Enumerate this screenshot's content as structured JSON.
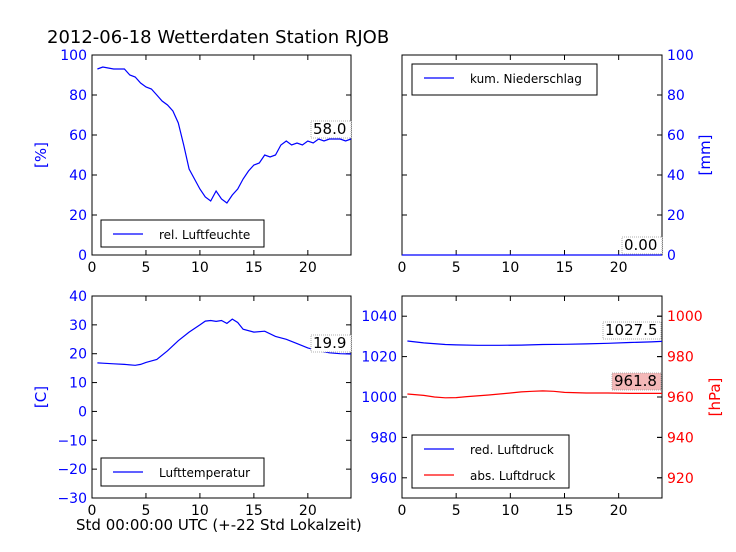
{
  "page": {
    "title": "2012-06-18 Wetterdaten Station RJOB",
    "xlabel": "Std 00:00:00 UTC (+-22 Std Lokalzeit)"
  },
  "chart_data": [
    {
      "type": "line",
      "id": "humidity",
      "ylabel": "[%]",
      "xlim": [
        0,
        24
      ],
      "ylim": [
        0,
        100
      ],
      "xticks": [
        0,
        5,
        10,
        15,
        20
      ],
      "yticks": [
        0,
        20,
        40,
        60,
        80,
        100
      ],
      "tick_color": "#0000ff",
      "legend": "lower left",
      "series": [
        {
          "name": "rel. Luftfeuchte",
          "color": "#0000ff",
          "x": [
            0.5,
            1,
            2,
            3,
            3.5,
            4,
            4.5,
            5,
            5.5,
            6,
            6.5,
            7,
            7.5,
            8,
            8.5,
            9,
            9.5,
            10,
            10.5,
            11,
            11.5,
            12,
            12.5,
            13,
            13.5,
            14,
            14.5,
            15,
            15.5,
            16,
            16.5,
            17,
            17.5,
            18,
            18.5,
            19,
            19.5,
            20,
            20.5,
            21,
            21.5,
            22,
            22.5,
            23,
            23.5,
            24
          ],
          "y": [
            93,
            94,
            93,
            93,
            90,
            89,
            86,
            84,
            83,
            80,
            77,
            75,
            72,
            66,
            55,
            43,
            38,
            33,
            29,
            27,
            32,
            28,
            26,
            30,
            33,
            38,
            42,
            45,
            46,
            50,
            49,
            50,
            55,
            57,
            55,
            56,
            55,
            57,
            56,
            58,
            57,
            58,
            58,
            58,
            57,
            58
          ]
        }
      ],
      "annotation": "58.0"
    },
    {
      "type": "line",
      "id": "precip",
      "ylabel": "[mm]",
      "xlim": [
        0,
        24
      ],
      "ylim": [
        0,
        100
      ],
      "xticks": [
        0,
        5,
        10,
        15,
        20
      ],
      "yticks": [
        0,
        20,
        40,
        60,
        80,
        100
      ],
      "tick_color": "#0000ff",
      "legend": "upper left",
      "series": [
        {
          "name": "kum. Niederschlag",
          "color": "#0000ff",
          "x": [
            0,
            24
          ],
          "y": [
            0,
            0
          ]
        }
      ],
      "annotation": "0.00"
    },
    {
      "type": "line",
      "id": "temperature",
      "ylabel": "[C]",
      "xlim": [
        0,
        24
      ],
      "ylim": [
        -30,
        40
      ],
      "xticks": [
        0,
        5,
        10,
        15,
        20
      ],
      "yticks": [
        -30,
        -20,
        -10,
        0,
        10,
        20,
        30,
        40
      ],
      "tick_color": "#0000ff",
      "legend": "lower left",
      "series": [
        {
          "name": "Lufttemperatur",
          "color": "#0000ff",
          "x": [
            0.5,
            1,
            2,
            3,
            4,
            4.5,
            5,
            5.5,
            6,
            7,
            8,
            9,
            10,
            10.5,
            11,
            11.5,
            12,
            12.5,
            13,
            13.5,
            14,
            15,
            16,
            17,
            18,
            19,
            20,
            21,
            22,
            23,
            24
          ],
          "y": [
            16.8,
            16.7,
            16.5,
            16.3,
            16,
            16.3,
            17,
            17.5,
            18,
            21,
            24.5,
            27.5,
            30,
            31.3,
            31.5,
            31.2,
            31.5,
            30.5,
            32,
            30.8,
            28.5,
            27.5,
            27.8,
            26,
            25,
            23.5,
            22,
            21,
            20.3,
            20,
            19.9
          ]
        }
      ],
      "annotation": "19.9"
    },
    {
      "type": "line",
      "id": "pressure",
      "ylabel": "",
      "ylabel_right": "[hPa]",
      "xlim": [
        0,
        24
      ],
      "ylim": [
        950,
        1050
      ],
      "ylim_right": [
        910,
        1010
      ],
      "xticks": [
        0,
        5,
        10,
        15,
        20
      ],
      "yticks": [
        960,
        980,
        1000,
        1020,
        1040
      ],
      "yticks_right": [
        920,
        940,
        960,
        980,
        1000
      ],
      "tick_color": "#0000ff",
      "tick_color_right": "#ff0000",
      "legend": "lower left",
      "series": [
        {
          "name": "red. Luftdruck",
          "color": "#0000ff",
          "axis": "left",
          "x": [
            0.5,
            2,
            4,
            5,
            7,
            9,
            11,
            13,
            15,
            17,
            19,
            21,
            23,
            24
          ],
          "y": [
            1027.7,
            1026.8,
            1026,
            1025.8,
            1025.6,
            1025.6,
            1025.7,
            1026,
            1026.1,
            1026.3,
            1026.6,
            1027,
            1027.3,
            1027.5
          ]
        },
        {
          "name": "abs. Luftdruck",
          "color": "#ff0000",
          "axis": "right",
          "x": [
            0.5,
            2,
            3,
            4,
            5,
            6,
            8,
            10,
            11,
            12,
            13,
            14,
            15,
            17,
            19,
            21,
            23,
            24
          ],
          "y": [
            961.5,
            960.8,
            960,
            959.6,
            959.7,
            960.2,
            961,
            962,
            962.5,
            962.8,
            963,
            962.8,
            962.3,
            962,
            962,
            961.8,
            961.8,
            961.8
          ]
        }
      ],
      "annotations": [
        "1027.5",
        "961.8"
      ]
    }
  ]
}
